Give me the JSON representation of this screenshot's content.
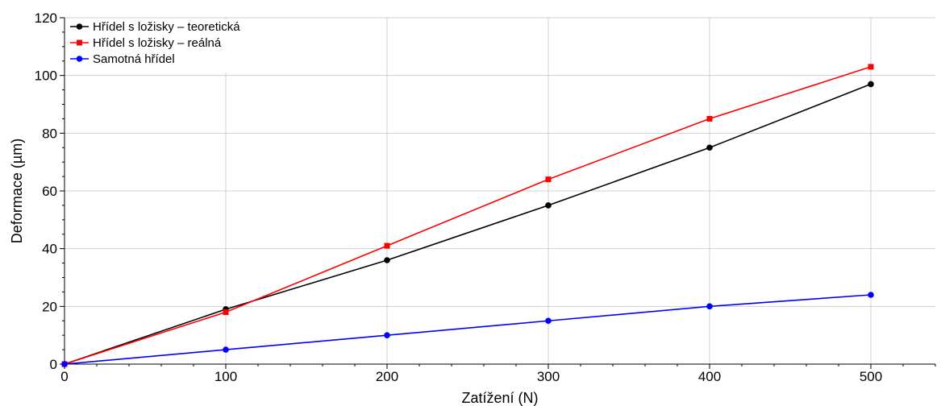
{
  "chart_data": {
    "type": "line",
    "xlabel": "Zatížení (N)",
    "ylabel": "Deformace (µm)",
    "xlim": [
      0,
      540
    ],
    "ylim": [
      0,
      120
    ],
    "x_ticks": [
      0,
      100,
      200,
      300,
      400,
      500
    ],
    "y_ticks": [
      0,
      20,
      40,
      60,
      80,
      100,
      120
    ],
    "grid": true,
    "legend_position": "top-left",
    "series": [
      {
        "name": "Hřídel s ložisky – teoretická",
        "color": "#000000",
        "marker": "circle",
        "x": [
          0,
          100,
          200,
          300,
          400,
          500
        ],
        "y": [
          0,
          19,
          36,
          55,
          75,
          97
        ]
      },
      {
        "name": "Hřídel s ložisky – reálná",
        "color": "#ff0000",
        "marker": "square",
        "x": [
          0,
          100,
          200,
          300,
          400,
          500
        ],
        "y": [
          0,
          18,
          41,
          64,
          85,
          103
        ]
      },
      {
        "name": "Samotná hřídel",
        "color": "#0000ff",
        "marker": "circle",
        "x": [
          0,
          100,
          200,
          300,
          400,
          500
        ],
        "y": [
          0,
          5,
          10,
          15,
          20,
          24
        ]
      }
    ]
  }
}
